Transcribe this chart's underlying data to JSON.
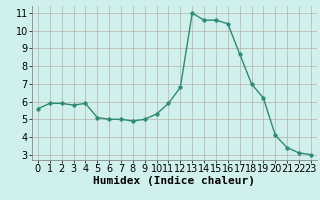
{
  "x": [
    0,
    1,
    2,
    3,
    4,
    5,
    6,
    7,
    8,
    9,
    10,
    11,
    12,
    13,
    14,
    15,
    16,
    17,
    18,
    19,
    20,
    21,
    22,
    23
  ],
  "y": [
    5.6,
    5.9,
    5.9,
    5.8,
    5.9,
    5.1,
    5.0,
    5.0,
    4.9,
    5.0,
    5.3,
    5.9,
    6.8,
    11.0,
    10.6,
    10.6,
    10.4,
    8.7,
    7.0,
    6.2,
    4.1,
    3.4,
    3.1,
    3.0
  ],
  "xlabel": "Humidex (Indice chaleur)",
  "xlim": [
    -0.5,
    23.5
  ],
  "ylim": [
    2.7,
    11.4
  ],
  "yticks": [
    3,
    4,
    5,
    6,
    7,
    8,
    9,
    10,
    11
  ],
  "xticks": [
    0,
    1,
    2,
    3,
    4,
    5,
    6,
    7,
    8,
    9,
    10,
    11,
    12,
    13,
    14,
    15,
    16,
    17,
    18,
    19,
    20,
    21,
    22,
    23
  ],
  "line_color": "#2e8b72",
  "marker_size": 2.5,
  "bg_color": "#cff0ec",
  "grid_color": "#b8b0a8",
  "xlabel_fontsize": 8,
  "tick_fontsize": 7
}
